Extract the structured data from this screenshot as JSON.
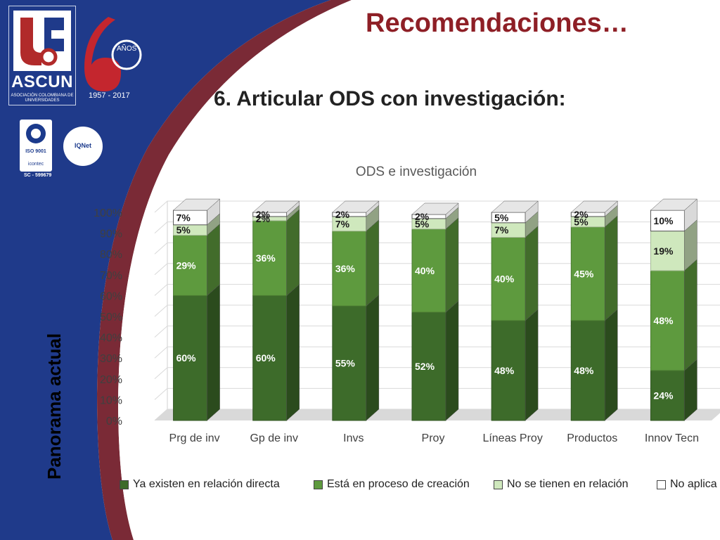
{
  "header": {
    "title": "Recomendaciones…",
    "subtitle": "6. Articular ODS con investigación:",
    "side_label": "Panorama actual"
  },
  "logos": {
    "org": "ASCUN",
    "org_sub": "ASOCIACIÓN COLOMBIANA DE UNIVERSIDADES",
    "anniversary_years": "1957 - 2017",
    "anniversary_word": "AÑOS",
    "iso": "ISO 9001",
    "icontec": "icontec",
    "iqnet": "IQNet",
    "cert_code": "SC - 599679"
  },
  "colors": {
    "dark_green": "#3d6b2a",
    "mid_green": "#5e9a3e",
    "light_green": "#cfe8bd",
    "white": "#ffffff",
    "title_red": "#8e1f26",
    "navy": "#1f3a8a",
    "maroon": "#7a2a36"
  },
  "chart_data": {
    "type": "bar",
    "stacked": true,
    "title": "ODS e investigación",
    "categories": [
      "Prg de inv",
      "Gp de inv",
      "Invs",
      "Proy",
      "Líneas Proy",
      "Productos",
      "Innov Tecn"
    ],
    "series": [
      {
        "name": "Ya existen en relación directa",
        "values": [
          60,
          60,
          55,
          52,
          48,
          48,
          24
        ],
        "color": "#3d6b2a"
      },
      {
        "name": "Está en proceso de creación",
        "values": [
          29,
          36,
          36,
          40,
          40,
          45,
          48
        ],
        "color": "#5e9a3e"
      },
      {
        "name": "No se tienen en relación",
        "values": [
          5,
          2,
          7,
          5,
          7,
          5,
          19
        ],
        "color": "#cfe8bd"
      },
      {
        "name": "No aplica",
        "values": [
          7,
          2,
          2,
          2,
          5,
          2,
          10
        ],
        "color": "#ffffff"
      }
    ],
    "data_labels": [
      [
        "60%",
        "29%",
        "5%",
        "7%"
      ],
      [
        "60%",
        "36%",
        "2%",
        "2%"
      ],
      [
        "55%",
        "36%",
        "7%",
        "2%"
      ],
      [
        "52%",
        "40%",
        "5%",
        "2%"
      ],
      [
        "48%",
        "40%",
        "7%",
        "5%"
      ],
      [
        "48%",
        "45%",
        "5%",
        "2%"
      ],
      [
        "24%",
        "48%",
        "19%",
        "10%"
      ]
    ],
    "y_ticks": [
      "0%",
      "10%",
      "20%",
      "30%",
      "40%",
      "50%",
      "60%",
      "70%",
      "80%",
      "90%",
      "100%"
    ],
    "ylim": [
      0,
      100
    ],
    "grid": true,
    "legend_position": "bottom",
    "three_d": true
  }
}
